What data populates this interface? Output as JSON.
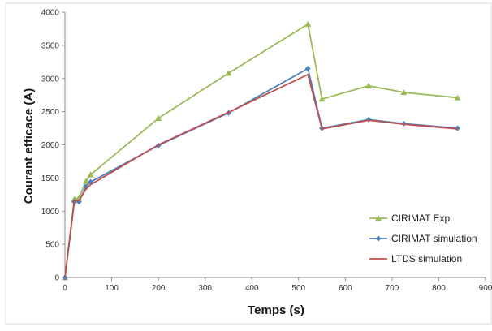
{
  "chart_data": {
    "type": "line",
    "title": "",
    "xlabel": "Temps (s)",
    "ylabel": "Courant efficace (A)",
    "xlim": [
      0,
      900
    ],
    "ylim": [
      0,
      4000
    ],
    "xticks": [
      "0",
      "100",
      "200",
      "300",
      "400",
      "500",
      "600",
      "700",
      "800",
      "900"
    ],
    "yticks": [
      "0",
      "500",
      "1000",
      "1500",
      "2000",
      "2500",
      "3000",
      "3500",
      "4000"
    ],
    "grid": false,
    "legend_position": "bottom-right",
    "series": [
      {
        "name": "CIRIMAT Exp",
        "color": "#9bbb59",
        "marker": "triangle",
        "x": [
          0,
          20,
          30,
          45,
          55,
          200,
          350,
          520,
          550,
          650,
          725,
          840
        ],
        "y": [
          0,
          1180,
          1200,
          1450,
          1550,
          2400,
          3080,
          3820,
          2690,
          2890,
          2790,
          2710
        ]
      },
      {
        "name": "CIRIMAT simulation",
        "color": "#4f81bd",
        "marker": "diamond",
        "x": [
          0,
          20,
          30,
          45,
          55,
          200,
          350,
          520,
          550,
          650,
          725,
          840
        ],
        "y": [
          0,
          1140,
          1140,
          1370,
          1440,
          1990,
          2480,
          3150,
          2250,
          2380,
          2320,
          2250
        ]
      },
      {
        "name": "LTDS simulation",
        "color": "#c0504d",
        "marker": "none",
        "x": [
          0,
          20,
          30,
          45,
          55,
          200,
          350,
          520,
          550,
          650,
          725,
          840
        ],
        "y": [
          0,
          1150,
          1160,
          1330,
          1400,
          2000,
          2490,
          3060,
          2240,
          2370,
          2310,
          2240
        ]
      }
    ]
  }
}
